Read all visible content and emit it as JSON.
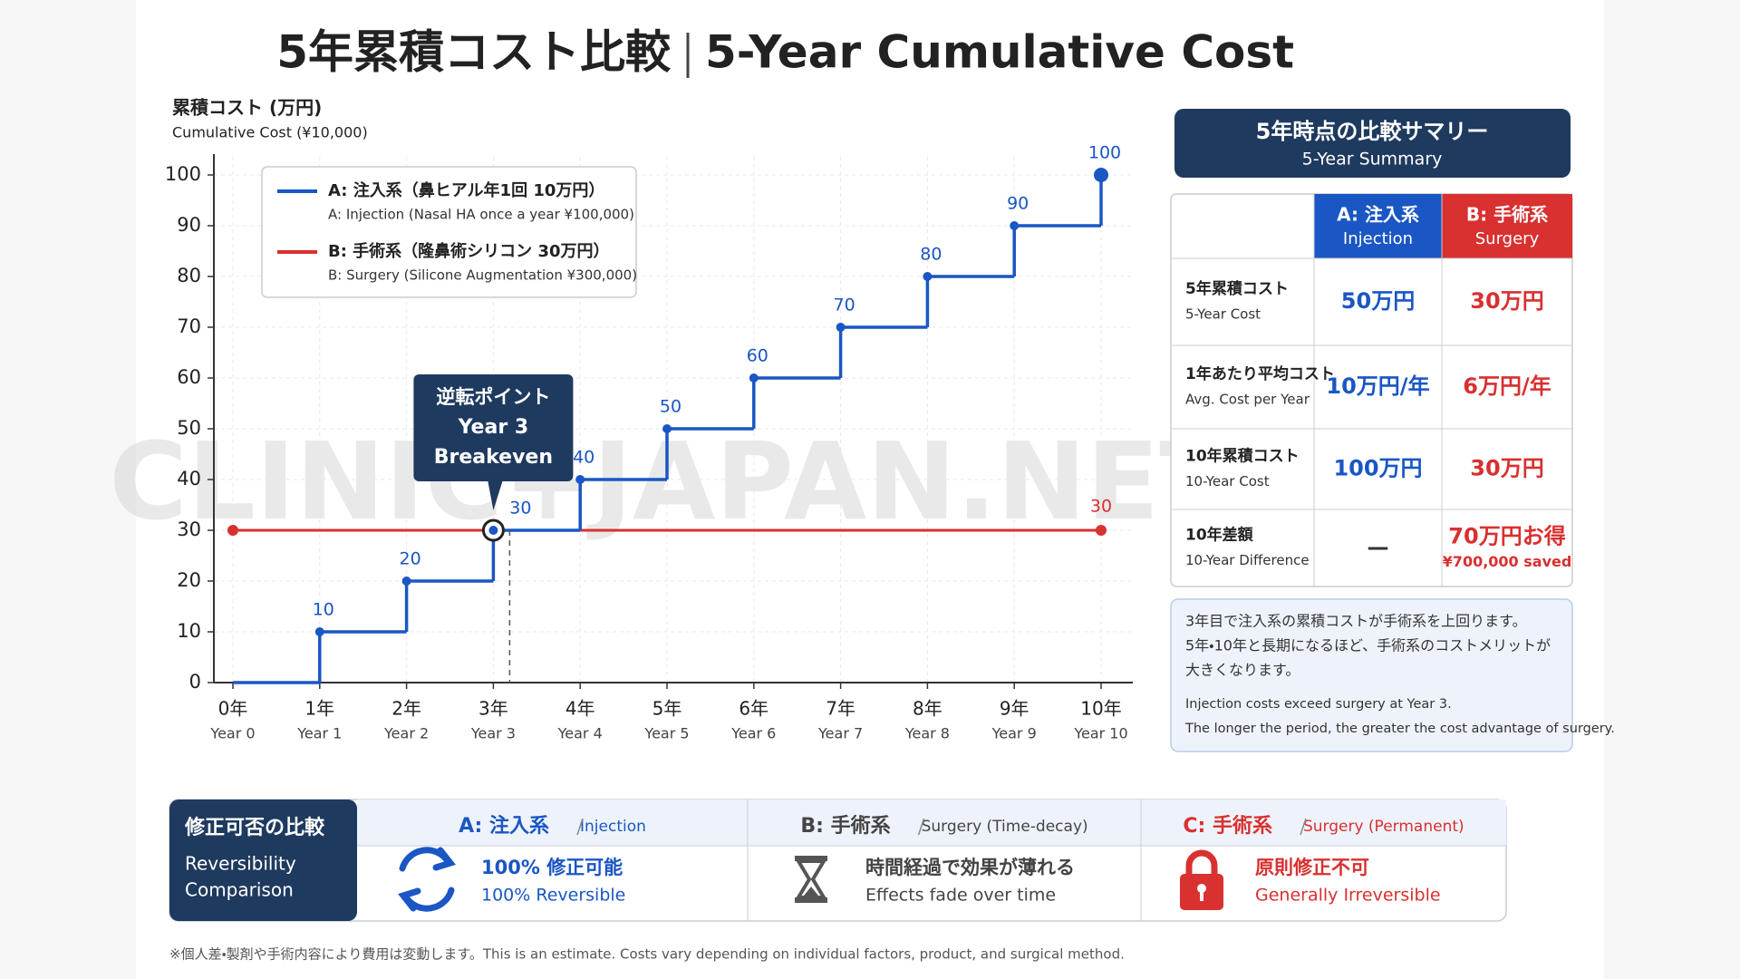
{
  "title_jp": "5年累積コスト比較",
  "title_en": "5-Year Cumulative Cost",
  "chart_data": {
    "type": "step",
    "y_label": "累積コスト (万円)",
    "y_label_en": "Cumulative Cost (¥10,000)",
    "categories": [
      "0年",
      "1年",
      "2年",
      "3年",
      "4年",
      "5年",
      "6年",
      "7年",
      "8年",
      "9年",
      "10年"
    ],
    "categories_en": [
      "Year 0",
      "Year 1",
      "Year 2",
      "Year 3",
      "Year 4",
      "Year 5",
      "Year 6",
      "Year 7",
      "Year 8",
      "Year 9",
      "Year 10"
    ],
    "series": [
      {
        "name": "A: 注入系（鼻ヒアル年1回 10万円）",
        "description": "A: Injection (Nasal HA once a year ¥100,000)",
        "color": "#1a56c4",
        "values": [
          0,
          10,
          20,
          30,
          40,
          50,
          60,
          70,
          80,
          90,
          100
        ]
      },
      {
        "name": "B: 手術系（隆鼻術シリコン 30万円）",
        "description": "B: Surgery (Silicone Augmentation ¥300,000)",
        "color": "#d93030",
        "values": [
          30,
          30,
          30,
          30,
          30,
          30,
          30,
          30,
          30,
          30,
          30
        ]
      }
    ],
    "ylim": [
      0,
      100
    ],
    "yticks": [
      0,
      10,
      20,
      30,
      40,
      50,
      60,
      70,
      80,
      90,
      100
    ],
    "grid": true,
    "annotation": [
      "逆転ポイント",
      "Year 3",
      "Breakeven"
    ],
    "watermark": "CLINIC+JAPAN.NET"
  },
  "summary": {
    "title": "5年時点の比較サマリー",
    "subtitle": "5-Year Summary",
    "columns": [
      {
        "name": "A: 注入系",
        "sub": "Injection",
        "color": "#1a56c4"
      },
      {
        "name": "B: 手術系",
        "sub": "Surgery",
        "color": "#d93030"
      }
    ],
    "rows": [
      {
        "label": "5年累積コスト",
        "label_en": "5-Year Cost",
        "cells": [
          [
            "50万円"
          ],
          [
            "30万円"
          ]
        ]
      },
      {
        "label": "1年あたり平均コスト",
        "label_en": "Avg. Cost per Year",
        "cells": [
          [
            "10万円/年"
          ],
          [
            "6万円/年"
          ]
        ]
      },
      {
        "label": "10年累積コスト",
        "label_en": "10-Year Cost",
        "cells": [
          [
            "100万円"
          ],
          [
            "30万円"
          ]
        ]
      },
      {
        "label": "10年差額",
        "label_en": "10-Year Difference",
        "cells": [
          [
            "—"
          ],
          [
            "70万円お得",
            "¥700,000 saved"
          ]
        ]
      }
    ],
    "note": [
      "3年目で注入系の累積コストが手術系を上回ります。",
      "5年・10年と長期になるほど、手術系のコストメリットが",
      "大きくなります。",
      "Injection costs exceed surgery at Year 3.",
      "The longer the period, the greater the cost advantage of surgery."
    ]
  },
  "reversibility": {
    "title": "修正可否の比較",
    "title_en": [
      "Reversibility",
      "Comparison"
    ],
    "columns": [
      {
        "head": "A: 注入系",
        "sub": "Injection",
        "line1": "100% 修正可能",
        "line2": "100% Reversible",
        "color": "#1a56c4"
      },
      {
        "head": "B: 手術系",
        "sub": "Surgery (Time-decay)",
        "line1": "時間経過で効果が薄れる",
        "line2": "Effects fade over time",
        "color": "#444444"
      },
      {
        "head": "C: 手術系",
        "sub": "Surgery (Permanent)",
        "line1": "原則修正不可",
        "line2": "Generally Irreversible",
        "color": "#d93030"
      }
    ]
  },
  "footnote": "※個人差・製剤や手術内容により費用は変動します。This is an estimate. Costs vary depending on individual factors, product, and surgical method."
}
